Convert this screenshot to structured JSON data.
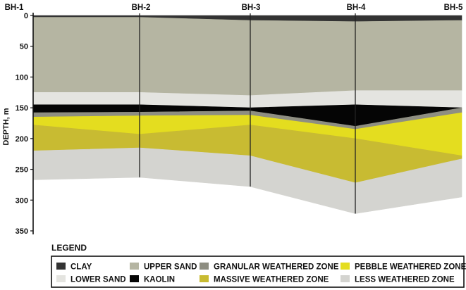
{
  "boreholes": [
    "BH-1",
    "BH-2",
    "BH-3",
    "BH-4",
    "BH-5"
  ],
  "depth_axis": {
    "label": "DEPTH, m",
    "ticks": [
      "0",
      "50",
      "100",
      "150",
      "200",
      "250",
      "300",
      "350"
    ],
    "range": [
      0,
      350
    ]
  },
  "legend": {
    "title": "LEGEND",
    "items": [
      {
        "key": "clay",
        "label": "CLAY",
        "color": "#333333"
      },
      {
        "key": "lower_sand",
        "label": "LOWER SAND",
        "color": "#e4e4e0"
      },
      {
        "key": "upper_sand",
        "label": "UPPER SAND",
        "color": "#b5b5a2"
      },
      {
        "key": "kaolin",
        "label": "KAOLIN",
        "color": "#050505"
      },
      {
        "key": "granular",
        "label": "GRANULAR WEATHERED ZONE",
        "color": "#8e8e82"
      },
      {
        "key": "massive",
        "label": "MASSIVE WEATHERED ZONE",
        "color": "#c8bb32"
      },
      {
        "key": "pebble",
        "label": "PEBBLE WEATHERED ZONE",
        "color": "#e4dd1f"
      },
      {
        "key": "less",
        "label": "LESS WEATHERED ZONE",
        "color": "#d4d4d0"
      }
    ]
  },
  "layers": [
    {
      "key": "clay",
      "top": [
        0,
        0,
        0,
        0,
        0
      ],
      "bottom": [
        3,
        3,
        8,
        10,
        8
      ]
    },
    {
      "key": "upper_sand",
      "top": [
        3,
        3,
        8,
        10,
        8
      ],
      "bottom": [
        125,
        125,
        130,
        122,
        122
      ]
    },
    {
      "key": "lower_sand",
      "top": [
        125,
        125,
        130,
        122,
        122
      ],
      "bottom": [
        145,
        145,
        150,
        145,
        150
      ]
    },
    {
      "key": "kaolin",
      "top": [
        145,
        145,
        150,
        145,
        150
      ],
      "bottom": [
        158,
        157,
        155,
        180,
        150
      ]
    },
    {
      "key": "granular",
      "top": [
        158,
        157,
        155,
        180,
        150
      ],
      "bottom": [
        165,
        163,
        162,
        185,
        158
      ]
    },
    {
      "key": "pebble",
      "top": [
        165,
        163,
        162,
        185,
        158
      ],
      "bottom": [
        178,
        193,
        178,
        200,
        228
      ]
    },
    {
      "key": "massive",
      "top": [
        178,
        193,
        178,
        200,
        228
      ],
      "bottom": [
        220,
        215,
        228,
        272,
        233
      ]
    },
    {
      "key": "less",
      "top": [
        220,
        215,
        228,
        272,
        233
      ],
      "bottom": [
        267,
        263,
        278,
        322,
        295
      ]
    }
  ]
}
